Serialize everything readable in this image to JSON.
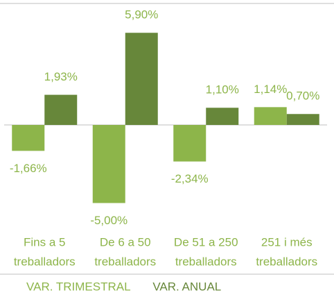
{
  "chart_data": {
    "type": "bar",
    "categories": [
      [
        "Fins a 5",
        "treballadors"
      ],
      [
        "De 6 a 50",
        "treballadors"
      ],
      [
        "De 51 a 250",
        "treballadors"
      ],
      [
        "251 i més",
        "treballadors"
      ]
    ],
    "series": [
      {
        "name": "VAR. TRIMESTRAL",
        "color": "#8db54a",
        "values": [
          -1.66,
          -5.0,
          -2.34,
          1.14
        ],
        "value_labels": [
          "-1,66%",
          "-5,00%",
          "-2,34%",
          "1,14%"
        ]
      },
      {
        "name": "VAR. ANUAL",
        "color": "#67873a",
        "values": [
          1.93,
          5.9,
          1.1,
          0.7
        ],
        "value_labels": [
          "1,93%",
          "5,90%",
          "1,10%",
          "0,70%"
        ]
      }
    ],
    "legend": "bottom"
  }
}
